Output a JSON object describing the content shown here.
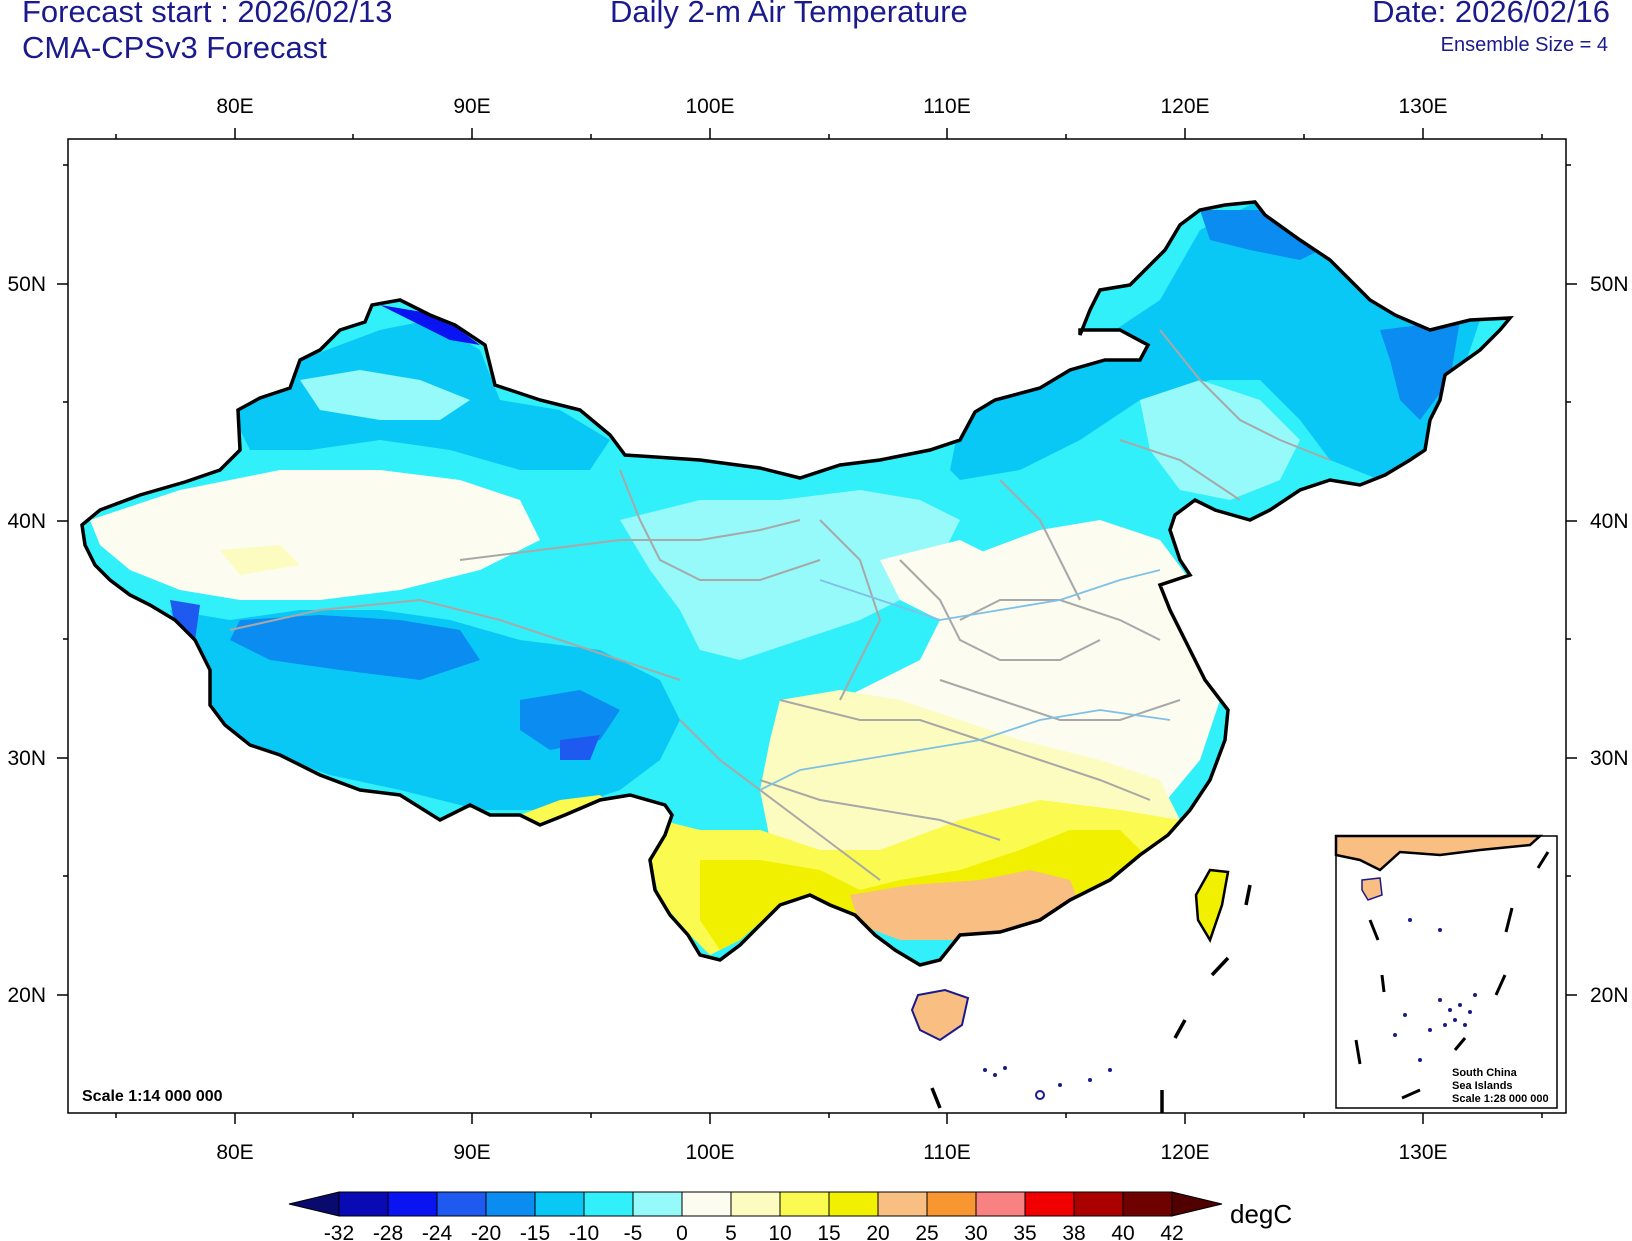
{
  "header": {
    "forecast_start": "Forecast start : 2026/02/13",
    "model": "CMA-CPSv3 Forecast",
    "title": "Daily 2-m Air Temperature",
    "date": "Date: 2026/02/16",
    "ensemble": "Ensemble Size = 4"
  },
  "axes": {
    "lon_labels": [
      "80E",
      "90E",
      "100E",
      "110E",
      "120E",
      "130E"
    ],
    "lat_labels": [
      "50N",
      "40N",
      "30N",
      "20N"
    ]
  },
  "scale_main": "Scale 1:14 000 000",
  "inset": {
    "line1": "South China",
    "line2": "Sea Islands",
    "line3": "Scale 1:28 000 000"
  },
  "colorbar": {
    "unit": "degC",
    "levels": [
      "-32",
      "-28",
      "-24",
      "-20",
      "-15",
      "-10",
      "-5",
      "0",
      "5",
      "10",
      "15",
      "20",
      "25",
      "30",
      "35",
      "38",
      "40",
      "42"
    ],
    "colors": [
      "#0a0a6e",
      "#0a0ab4",
      "#0a14f0",
      "#1e5af0",
      "#0a8cf0",
      "#0ac8f5",
      "#32f0fa",
      "#96fafa",
      "#fcfcf0",
      "#fcfcc0",
      "#fafa50",
      "#f0f000",
      "#f8be82",
      "#f89632",
      "#f88282",
      "#f00000",
      "#aa0000",
      "#6e0000",
      "#500000"
    ]
  }
}
